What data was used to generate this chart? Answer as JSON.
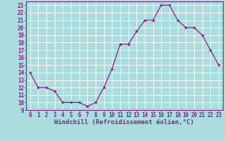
{
  "x": [
    0,
    1,
    2,
    3,
    4,
    5,
    6,
    7,
    8,
    9,
    10,
    11,
    12,
    13,
    14,
    15,
    16,
    17,
    18,
    19,
    20,
    21,
    22,
    23
  ],
  "y": [
    14,
    12,
    12,
    11.5,
    10,
    10,
    10,
    9.5,
    10,
    12,
    14.5,
    17.8,
    17.8,
    19.5,
    21,
    21,
    23,
    23,
    21,
    20,
    20,
    19,
    17,
    15
  ],
  "line_color": "#882288",
  "marker": "+",
  "marker_color": "#882288",
  "bg_color": "#aadddd",
  "grid_color": "#ffffff",
  "xlabel": "Windchill (Refroidissement éolien,°C)",
  "xlabel_color": "#882288",
  "tick_color": "#882288",
  "ylabel_ticks": [
    9,
    10,
    11,
    12,
    13,
    14,
    15,
    16,
    17,
    18,
    19,
    20,
    21,
    22,
    23
  ],
  "xlim": [
    -0.5,
    23.5
  ],
  "ylim": [
    9,
    23.5
  ],
  "spine_color": "#882288",
  "tick_fontsize": 5.5,
  "xlabel_fontsize": 6.5
}
